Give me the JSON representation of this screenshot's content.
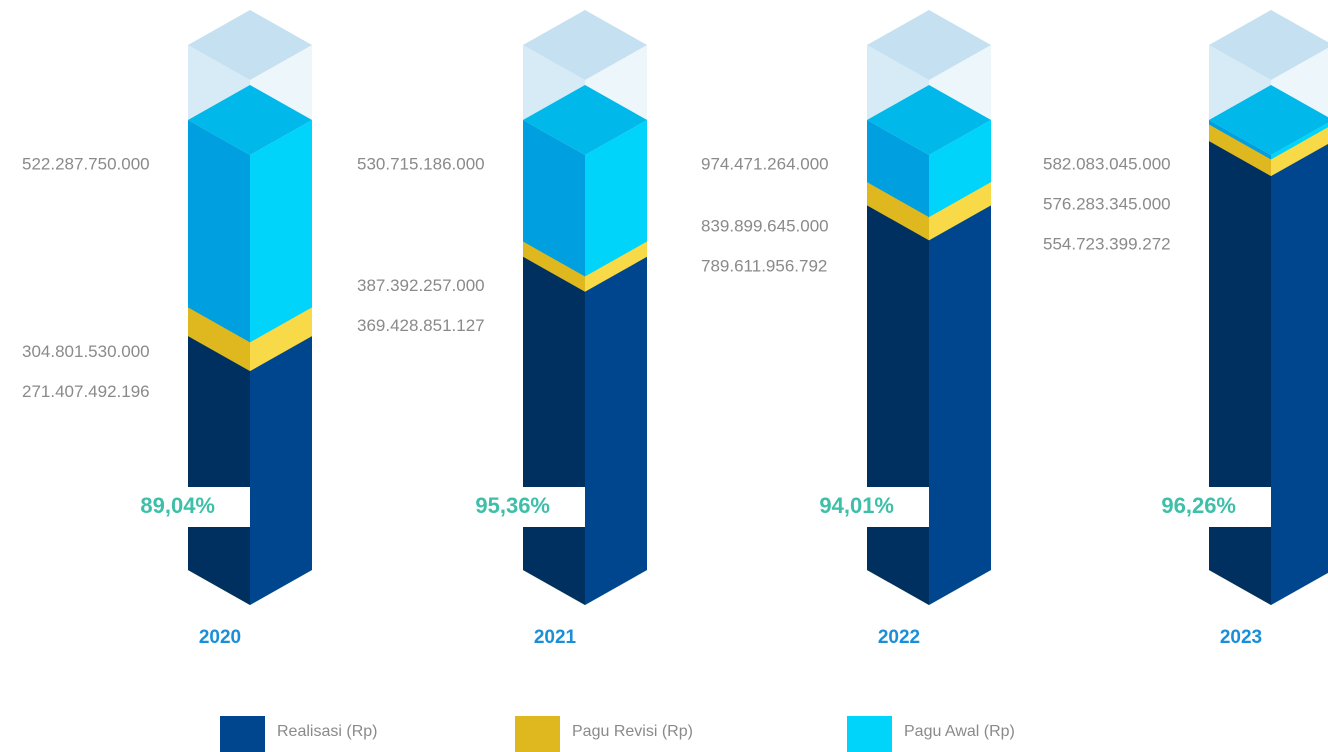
{
  "chart_data": {
    "type": "isometric-column",
    "categories": [
      "2020",
      "2021",
      "2022",
      "2023"
    ],
    "series": [
      {
        "name": "Realisasi (Rp)",
        "color": "#00468f",
        "values": [
          271407492196,
          369428851127,
          789611956792,
          554723399272
        ],
        "value_labels": [
          "271.407.492.196",
          "369.428.851.127",
          "789.611.956.792",
          "554.723.399.272"
        ]
      },
      {
        "name": "Pagu Revisi (Rp)",
        "color": "#dfb820",
        "values": [
          304801530000,
          387392257000,
          839899645000,
          576283345000
        ],
        "value_labels": [
          "304.801.530.000",
          "387.392.257.000",
          "839.899.645.000",
          "576.283.345.000"
        ]
      },
      {
        "name": "Pagu Awal (Rp)",
        "color": "#00d4fa",
        "values": [
          522287750000,
          530715186000,
          974471264000,
          582083045000
        ],
        "value_labels": [
          "522.287.750.000",
          "530.715.186.000",
          "974.471.264.000",
          "582.083.045.000"
        ]
      }
    ],
    "rates": {
      "values": [
        89.04,
        95.36,
        94.01,
        96.26
      ],
      "value_labels": [
        "89,04%",
        "95,36%",
        "94,01%",
        "96,26%"
      ]
    }
  }
}
